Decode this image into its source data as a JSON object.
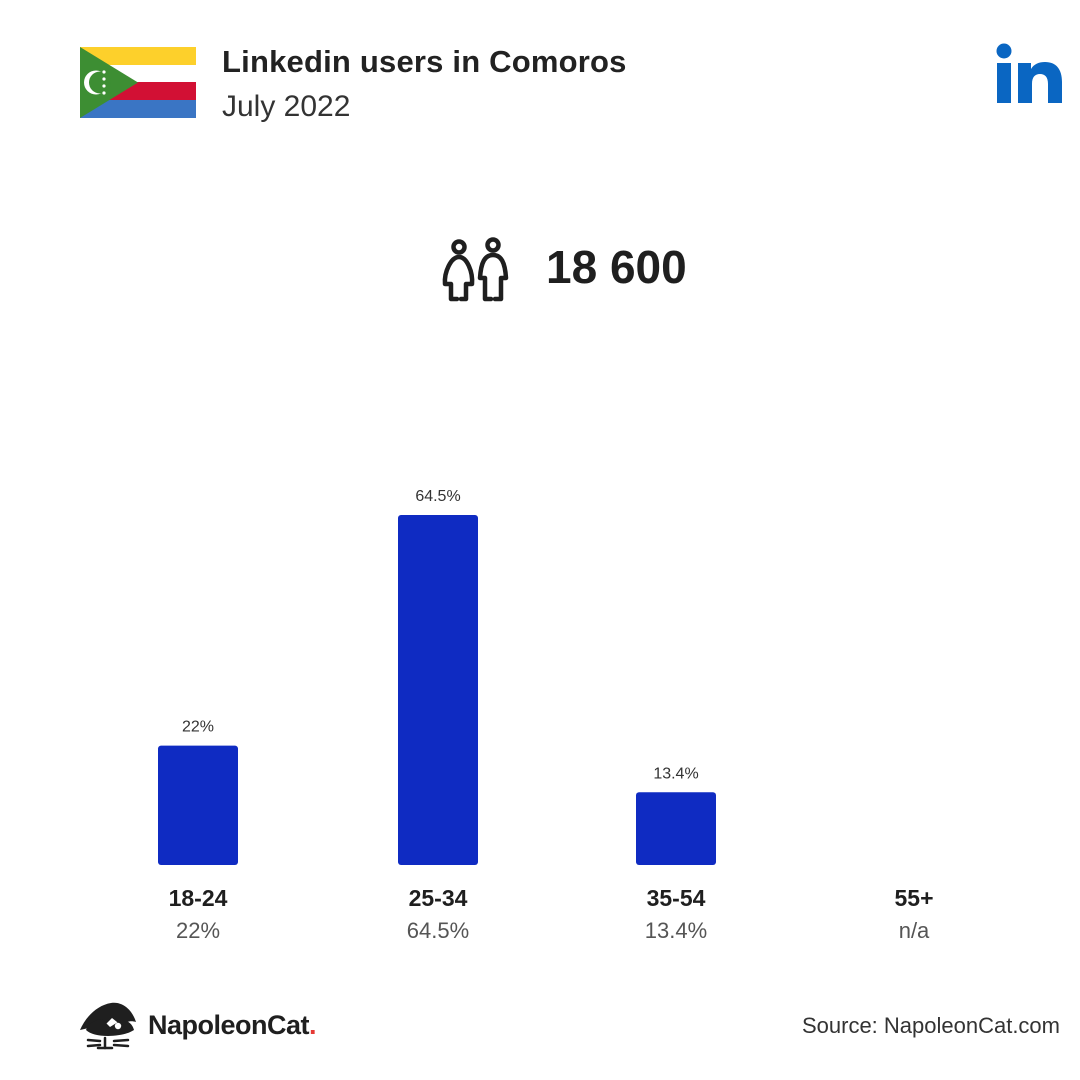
{
  "header": {
    "title": "Linkedin users in Comoros",
    "subtitle": "July 2022"
  },
  "total_users": "18 600",
  "chart_data": {
    "type": "bar",
    "categories": [
      "18-24",
      "25-34",
      "35-54",
      "55+"
    ],
    "values": [
      22,
      64.5,
      13.4,
      null
    ],
    "value_labels": [
      "22%",
      "64.5%",
      "13.4%",
      "n/a"
    ],
    "ylim": [
      0,
      64.5
    ],
    "grid": false,
    "legend": "none",
    "bar_color": "#0f2bc2"
  },
  "footer": {
    "brand": "NapoleonCat",
    "brand_dot": ".",
    "source": "Source: NapoleonCat.com"
  },
  "colors": {
    "linkedin_blue": "#0a66c2",
    "brand_red": "#e53935"
  },
  "icons": {
    "flag": "comoros-flag-icon",
    "logo": "linkedin-logo-icon",
    "users": "users-icon",
    "brand": "napoleoncat-logo-icon"
  }
}
